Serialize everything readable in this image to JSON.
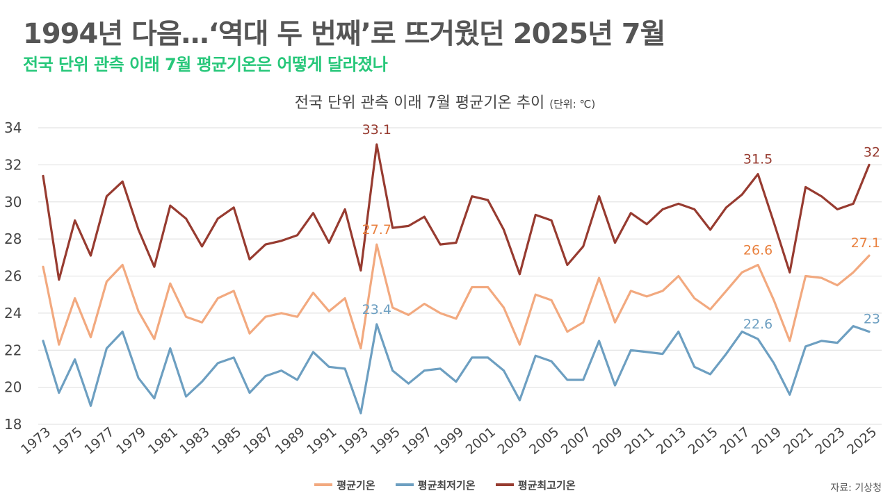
{
  "headline": "1994년 다음…‘역대 두 번째’로 뜨거웠던 2025년 7월",
  "subheadline": "전국 단위 관측 이래 7월 평균기온은 어떻게 달라졌나",
  "source": "자료: 기상청",
  "colors": {
    "mean": "#f2a97f",
    "min": "#6d9fc1",
    "max": "#973b30",
    "accent": "#27c77a",
    "mean_label": "#e9813f",
    "min_label": "#6d9fc1",
    "max_label": "#973b30"
  },
  "chart_data": {
    "type": "line",
    "title": "전국 단위 관측 이래 7월 평균기온 추이",
    "unit_label": "(단위: ℃)",
    "xlabel": "",
    "ylabel": "",
    "ylim": [
      18,
      34
    ],
    "yticks": [
      18,
      20,
      22,
      24,
      26,
      28,
      30,
      32,
      34
    ],
    "grid": true,
    "legend_position": "bottom-center",
    "x": [
      1973,
      1974,
      1975,
      1976,
      1977,
      1978,
      1979,
      1980,
      1981,
      1982,
      1983,
      1984,
      1985,
      1986,
      1987,
      1988,
      1989,
      1990,
      1991,
      1992,
      1993,
      1994,
      1995,
      1996,
      1997,
      1998,
      1999,
      2000,
      2001,
      2002,
      2003,
      2004,
      2005,
      2006,
      2007,
      2008,
      2009,
      2010,
      2011,
      2012,
      2013,
      2014,
      2015,
      2016,
      2017,
      2018,
      2019,
      2020,
      2021,
      2022,
      2023,
      2024,
      2025
    ],
    "xtick_labels": [
      "1973",
      "1975",
      "1977",
      "1979",
      "1981",
      "1983",
      "1985",
      "1987",
      "1989",
      "1991",
      "1993",
      "1995",
      "1997",
      "1999",
      "2001",
      "2003",
      "2005",
      "2007",
      "2009",
      "2011",
      "2013",
      "2015",
      "2017",
      "2019",
      "2021",
      "2023",
      "2025"
    ],
    "series": [
      {
        "key": "mean",
        "name": "평균기온",
        "values": [
          26.5,
          22.3,
          24.8,
          22.7,
          25.7,
          26.6,
          24.1,
          22.6,
          25.6,
          23.8,
          23.5,
          24.8,
          25.2,
          22.9,
          23.8,
          24.0,
          23.8,
          25.1,
          24.1,
          24.8,
          22.1,
          27.7,
          24.3,
          23.9,
          24.5,
          24.0,
          23.7,
          25.4,
          25.4,
          24.3,
          22.3,
          25.0,
          24.7,
          23.0,
          23.5,
          25.9,
          23.5,
          25.2,
          24.9,
          25.2,
          26.0,
          24.8,
          24.2,
          25.2,
          26.2,
          26.6,
          24.7,
          22.5,
          26.0,
          25.9,
          25.5,
          26.2,
          27.1
        ],
        "labels": [
          {
            "year": 1994,
            "text": "27.7"
          },
          {
            "year": 2018,
            "text": "26.6"
          },
          {
            "year": 2025,
            "text": "27.1"
          }
        ]
      },
      {
        "key": "min",
        "name": "평균최저기온",
        "values": [
          22.5,
          19.7,
          21.5,
          19.0,
          22.1,
          23.0,
          20.5,
          19.4,
          22.1,
          19.5,
          20.3,
          21.3,
          21.6,
          19.7,
          20.6,
          20.9,
          20.4,
          21.9,
          21.1,
          21.0,
          18.6,
          23.4,
          20.9,
          20.2,
          20.9,
          21.0,
          20.3,
          21.6,
          21.6,
          20.9,
          19.3,
          21.7,
          21.4,
          20.4,
          20.4,
          22.5,
          20.1,
          22.0,
          21.9,
          21.8,
          23.0,
          21.1,
          20.7,
          21.8,
          23.0,
          22.6,
          21.3,
          19.6,
          22.2,
          22.5,
          22.4,
          23.3,
          23.0
        ],
        "labels": [
          {
            "year": 1994,
            "text": "23.4"
          },
          {
            "year": 2018,
            "text": "22.6"
          },
          {
            "year": 2025,
            "text": "23"
          }
        ]
      },
      {
        "key": "max",
        "name": "평균최고기온",
        "values": [
          31.4,
          25.8,
          29.0,
          27.1,
          30.3,
          31.1,
          28.5,
          26.5,
          29.8,
          29.1,
          27.6,
          29.1,
          29.7,
          26.9,
          27.7,
          27.9,
          28.2,
          29.4,
          27.8,
          29.6,
          26.3,
          33.1,
          28.6,
          28.7,
          29.2,
          27.7,
          27.8,
          30.3,
          30.1,
          28.5,
          26.1,
          29.3,
          29.0,
          26.6,
          27.6,
          30.3,
          27.8,
          29.4,
          28.8,
          29.6,
          29.9,
          29.6,
          28.5,
          29.7,
          30.4,
          31.5,
          28.9,
          26.2,
          30.8,
          30.3,
          29.6,
          29.9,
          32.0
        ],
        "labels": [
          {
            "year": 1994,
            "text": "33.1"
          },
          {
            "year": 2018,
            "text": "31.5"
          },
          {
            "year": 2025,
            "text": "32"
          }
        ]
      }
    ]
  }
}
